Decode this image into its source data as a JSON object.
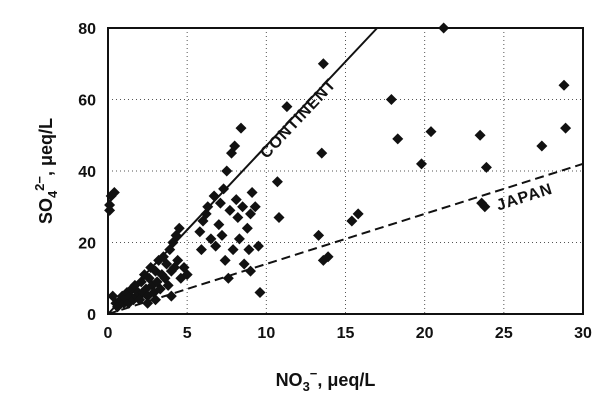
{
  "chart_data": {
    "type": "scatter",
    "xlabel_main": "NO",
    "xlabel_sub": "3",
    "xlabel_sup": "−",
    "xlabel_unit": ", μeq/L",
    "ylabel_main": "SO",
    "ylabel_sub": "4",
    "ylabel_sup": "2−",
    "ylabel_unit": ", μeq/L",
    "xlim": [
      0,
      30
    ],
    "ylim": [
      0,
      80
    ],
    "x_ticks": [
      "0",
      "5",
      "10",
      "15",
      "20",
      "25",
      "30"
    ],
    "y_ticks": [
      "0",
      "20",
      "40",
      "60",
      "80"
    ],
    "grid": "dotted",
    "lines": [
      {
        "label": "CONTINENT",
        "style": "solid",
        "points": [
          [
            0,
            0
          ],
          [
            17,
            80
          ]
        ]
      },
      {
        "label": "JAPAN",
        "style": "dashed",
        "points": [
          [
            0,
            0
          ],
          [
            30,
            42
          ]
        ]
      }
    ],
    "points": [
      [
        0.1,
        29
      ],
      [
        0.1,
        30.5
      ],
      [
        0.2,
        33
      ],
      [
        0.4,
        34
      ],
      [
        0.3,
        5
      ],
      [
        0.5,
        3
      ],
      [
        0.6,
        2
      ],
      [
        0.8,
        4
      ],
      [
        0.9,
        5
      ],
      [
        1.0,
        3
      ],
      [
        1.1,
        4.5
      ],
      [
        1.2,
        6
      ],
      [
        1.3,
        3
      ],
      [
        1.4,
        5
      ],
      [
        1.5,
        7
      ],
      [
        1.6,
        4
      ],
      [
        1.7,
        8
      ],
      [
        1.8,
        5
      ],
      [
        1.9,
        6
      ],
      [
        2.0,
        4
      ],
      [
        2.1,
        9
      ],
      [
        2.2,
        6
      ],
      [
        2.3,
        11
      ],
      [
        2.4,
        7
      ],
      [
        2.5,
        5
      ],
      [
        2.6,
        10
      ],
      [
        2.7,
        13
      ],
      [
        2.8,
        8
      ],
      [
        2.9,
        6
      ],
      [
        3.0,
        12
      ],
      [
        3.1,
        9
      ],
      [
        3.2,
        15
      ],
      [
        3.3,
        7
      ],
      [
        3.4,
        11
      ],
      [
        3.5,
        16
      ],
      [
        3.6,
        10
      ],
      [
        3.7,
        14
      ],
      [
        3.8,
        8
      ],
      [
        3.9,
        18
      ],
      [
        4.0,
        12
      ],
      [
        4.1,
        20
      ],
      [
        4.2,
        13
      ],
      [
        4.3,
        22
      ],
      [
        4.4,
        15
      ],
      [
        4.5,
        24
      ],
      [
        4.6,
        10
      ],
      [
        4.8,
        13
      ],
      [
        5.0,
        11
      ],
      [
        2.5,
        3
      ],
      [
        3.0,
        4
      ],
      [
        4.0,
        5
      ],
      [
        5.8,
        23
      ],
      [
        5.9,
        18
      ],
      [
        6.0,
        26
      ],
      [
        6.2,
        28
      ],
      [
        6.3,
        30
      ],
      [
        6.5,
        21
      ],
      [
        6.7,
        33
      ],
      [
        6.8,
        19
      ],
      [
        7.0,
        25
      ],
      [
        7.1,
        31
      ],
      [
        7.2,
        22
      ],
      [
        7.3,
        35
      ],
      [
        7.4,
        15
      ],
      [
        7.5,
        40
      ],
      [
        7.6,
        10
      ],
      [
        7.7,
        29
      ],
      [
        7.8,
        45
      ],
      [
        7.9,
        18
      ],
      [
        8.0,
        47
      ],
      [
        8.1,
        32
      ],
      [
        8.2,
        27
      ],
      [
        8.3,
        21
      ],
      [
        8.4,
        52
      ],
      [
        8.5,
        30
      ],
      [
        8.6,
        14
      ],
      [
        8.8,
        24
      ],
      [
        8.9,
        18
      ],
      [
        9.0,
        28
      ],
      [
        9.1,
        34
      ],
      [
        9.3,
        30
      ],
      [
        9.5,
        19
      ],
      [
        9.6,
        6
      ],
      [
        9.0,
        12
      ],
      [
        10.7,
        37
      ],
      [
        10.8,
        27
      ],
      [
        11.3,
        58
      ],
      [
        13.3,
        22
      ],
      [
        13.5,
        45
      ],
      [
        13.6,
        15
      ],
      [
        13.9,
        16
      ],
      [
        13.6,
        70
      ],
      [
        15.4,
        26
      ],
      [
        15.8,
        28
      ],
      [
        17.9,
        60
      ],
      [
        18.3,
        49
      ],
      [
        19.8,
        42
      ],
      [
        20.4,
        51
      ],
      [
        21.2,
        80
      ],
      [
        23.5,
        50
      ],
      [
        23.6,
        31
      ],
      [
        23.8,
        30
      ],
      [
        23.9,
        41
      ],
      [
        27.4,
        47
      ],
      [
        28.8,
        64
      ],
      [
        28.9,
        52
      ]
    ]
  }
}
